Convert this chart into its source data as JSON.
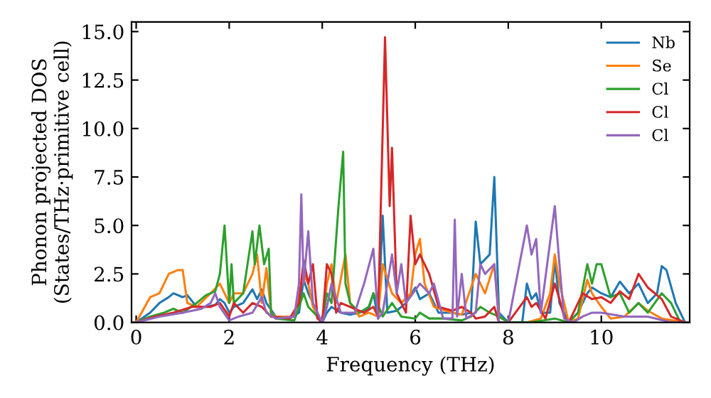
{
  "chart_data": {
    "type": "line",
    "xlabel": "Frequency (THz)",
    "ylabel": "Phonon projected DOS\n(States/THz·primitive cell)",
    "xlim": [
      -0.1,
      11.9
    ],
    "ylim": [
      0,
      15.5
    ],
    "xticks": [
      0,
      2,
      4,
      6,
      8,
      10
    ],
    "yticks": [
      {
        "value": 0,
        "label": "0.0"
      },
      {
        "value": 2.5,
        "label": "2.5"
      },
      {
        "value": 5,
        "label": "5.0"
      },
      {
        "value": 7.5,
        "label": "7.5"
      },
      {
        "value": 10,
        "label": "10.0"
      },
      {
        "value": 12.5,
        "label": "12.5"
      },
      {
        "value": 15,
        "label": "15.0"
      }
    ],
    "grid": false,
    "legend": "top right",
    "marker": "none",
    "line_style": "solid",
    "series": [
      {
        "name": "Nb",
        "color": "#1f77b4",
        "x": [
          0,
          0.3,
          0.5,
          0.7,
          0.8,
          1.0,
          1.1,
          1.3,
          1.5,
          1.7,
          1.8,
          1.9,
          2.0,
          2.1,
          2.3,
          2.5,
          2.6,
          2.7,
          2.8,
          3.0,
          3.3,
          3.5,
          3.6,
          3.7,
          3.8,
          3.9,
          4.0,
          4.1,
          4.2,
          4.4,
          4.6,
          4.8,
          5.0,
          5.1,
          5.2,
          5.3,
          5.4,
          5.6,
          5.8,
          6.0,
          6.1,
          6.3,
          6.5,
          6.8,
          7.0,
          7.2,
          7.3,
          7.4,
          7.6,
          7.7,
          7.8,
          8.0,
          8.3,
          8.4,
          8.5,
          8.6,
          8.7,
          8.9,
          9.0,
          9.1,
          9.3,
          9.5,
          9.7,
          9.8,
          10.0,
          10.2,
          10.4,
          10.6,
          10.8,
          11.0,
          11.2,
          11.3,
          11.4,
          11.6,
          11.8
        ],
        "values": [
          0,
          0.5,
          1.0,
          1.3,
          1.5,
          1.3,
          1.4,
          0.8,
          0.8,
          0.9,
          1.2,
          1.0,
          0.5,
          0.8,
          1.0,
          1.7,
          1.2,
          1.7,
          1.0,
          0.3,
          0.2,
          0.5,
          2.2,
          1.5,
          1.0,
          0.2,
          0.0,
          0.5,
          0.8,
          0.5,
          0.4,
          0.5,
          0.7,
          1.5,
          0.2,
          5.5,
          0.5,
          0.6,
          1.0,
          1.8,
          1.2,
          1.5,
          0.5,
          0.5,
          0.4,
          0.5,
          5.2,
          3.0,
          3.5,
          7.5,
          0.5,
          0.0,
          0.0,
          2.0,
          1.2,
          1.5,
          0.5,
          0.5,
          3.2,
          1.0,
          0.0,
          0.5,
          1.5,
          1.8,
          1.5,
          1.3,
          2.1,
          1.5,
          2.0,
          1.0,
          1.5,
          2.9,
          2.7,
          1.0,
          0.0
        ]
      },
      {
        "name": "Se",
        "color": "#ff7f0e",
        "x": [
          0,
          0.3,
          0.5,
          0.7,
          0.9,
          1.0,
          1.1,
          1.3,
          1.6,
          1.8,
          2.0,
          2.1,
          2.3,
          2.5,
          2.6,
          2.7,
          2.8,
          2.9,
          3.0,
          3.4,
          3.6,
          3.7,
          3.8,
          4.0,
          4.1,
          4.2,
          4.3,
          4.5,
          4.6,
          4.8,
          5.0,
          5.2,
          5.3,
          5.5,
          5.7,
          5.9,
          6.0,
          6.1,
          6.2,
          6.4,
          6.8,
          7.0,
          7.3,
          7.5,
          7.7,
          7.8,
          8.0,
          8.4,
          8.7,
          8.9,
          9.0,
          9.1,
          9.3,
          9.5,
          9.7,
          9.8,
          10.0,
          10.2,
          10.5,
          10.8,
          11.0,
          11.3,
          11.8
        ],
        "values": [
          0,
          1.3,
          1.5,
          2.5,
          2.7,
          2.7,
          1.0,
          0.8,
          1.5,
          2.0,
          1.0,
          1.5,
          1.5,
          2.5,
          3.5,
          1.0,
          2.8,
          0.5,
          0.3,
          0.3,
          2.5,
          2.0,
          0.8,
          0,
          2.0,
          3.0,
          1.0,
          3.5,
          1.0,
          0.3,
          0.5,
          0.3,
          3.0,
          1.5,
          1.0,
          1.5,
          3.5,
          4.3,
          2.0,
          0.8,
          0.5,
          0.4,
          2.5,
          1.5,
          3.0,
          0.3,
          0,
          0,
          0.2,
          1.5,
          3.5,
          2.0,
          0.0,
          0.2,
          2.2,
          1.5,
          0.8,
          0.2,
          0.3,
          1.0,
          0.6,
          0.2,
          0
        ]
      },
      {
        "name": "Cl",
        "color": "#2ca02c",
        "x": [
          0,
          0.3,
          0.6,
          0.8,
          1.0,
          1.3,
          1.5,
          1.7,
          1.8,
          1.9,
          2.0,
          2.05,
          2.1,
          2.3,
          2.5,
          2.55,
          2.65,
          2.75,
          2.85,
          2.9,
          3.0,
          3.4,
          3.6,
          3.7,
          3.9,
          4.0,
          4.1,
          4.2,
          4.35,
          4.45,
          4.5,
          4.6,
          4.8,
          5.0,
          5.1,
          5.3,
          5.5,
          5.7,
          6.0,
          6.1,
          6.3,
          6.6,
          7.0,
          7.2,
          7.4,
          7.6,
          7.8,
          8.0,
          8.5,
          9.0,
          9.3,
          9.5,
          9.7,
          9.8,
          9.9,
          10.0,
          10.2,
          10.4,
          10.6,
          10.8,
          11.0,
          11.3,
          11.5,
          11.7
        ],
        "values": [
          0,
          0.3,
          0.5,
          0.7,
          0.5,
          1.0,
          1.4,
          1.6,
          2.5,
          5.0,
          1.0,
          3.0,
          1.0,
          1.5,
          4.7,
          3.0,
          5.0,
          3.0,
          3.8,
          0.5,
          0.2,
          0.1,
          1.5,
          0.8,
          0.3,
          0,
          1.5,
          1.0,
          6.0,
          8.8,
          2.0,
          1.0,
          0.5,
          0.8,
          1.5,
          0.3,
          1.0,
          0.3,
          0.2,
          0.5,
          0.2,
          0.2,
          0.1,
          0.3,
          0.8,
          0.5,
          0.3,
          0,
          0,
          0.2,
          0,
          0.5,
          3.0,
          2.0,
          3.0,
          3.0,
          1.3,
          1.5,
          0.5,
          1.0,
          0.5,
          1.5,
          1.0,
          0
        ]
      },
      {
        "name": "Cl",
        "color": "#d62728",
        "x": [
          0,
          0.4,
          0.8,
          1.2,
          1.6,
          1.8,
          2.0,
          2.1,
          2.3,
          2.5,
          2.7,
          2.9,
          3.3,
          3.5,
          3.6,
          3.7,
          3.8,
          3.9,
          4.0,
          4.1,
          4.2,
          4.3,
          4.4,
          4.6,
          4.9,
          5.1,
          5.2,
          5.35,
          5.45,
          5.5,
          5.6,
          5.8,
          5.9,
          6.0,
          6.1,
          6.3,
          6.5,
          6.8,
          7.0,
          7.2,
          7.3,
          7.5,
          7.7,
          7.8,
          8.0,
          8.4,
          8.5,
          8.6,
          8.8,
          9.0,
          9.1,
          9.2,
          9.3,
          9.6,
          9.8,
          10.0,
          10.2,
          10.4,
          10.6,
          10.8,
          11.0,
          11.3,
          11.5,
          11.8
        ],
        "values": [
          0,
          0.3,
          0.5,
          0.8,
          0.8,
          1.0,
          0.3,
          1.0,
          0.5,
          1.0,
          0.8,
          0.3,
          0.2,
          1.0,
          3.2,
          2.0,
          3.0,
          0.2,
          0,
          3.0,
          2.5,
          0.5,
          1.0,
          0.8,
          0.5,
          0.8,
          0.3,
          14.7,
          6.0,
          9.0,
          1.5,
          0.5,
          5.5,
          3.0,
          3.5,
          2.5,
          0.8,
          0.6,
          0.8,
          0.5,
          0.2,
          0.3,
          0.8,
          0,
          0,
          1.3,
          0.8,
          1.0,
          0.2,
          2.0,
          1.2,
          0.3,
          0,
          1.5,
          1.2,
          1.3,
          1.0,
          1.6,
          1.2,
          2.5,
          1.8,
          1.2,
          0.3,
          0
        ]
      },
      {
        "name": "Cl",
        "color": "#9467bd",
        "x": [
          0,
          0.5,
          1.0,
          1.4,
          1.6,
          1.7,
          1.8,
          2.0,
          2.2,
          2.5,
          2.7,
          2.8,
          3.0,
          3.4,
          3.5,
          3.55,
          3.6,
          3.7,
          3.8,
          4.0,
          4.1,
          4.2,
          4.4,
          4.7,
          4.9,
          5.1,
          5.2,
          5.3,
          5.5,
          5.6,
          5.7,
          5.8,
          6.1,
          6.3,
          6.4,
          6.6,
          6.8,
          6.85,
          6.9,
          7.0,
          7.1,
          7.3,
          7.4,
          7.5,
          7.7,
          7.8,
          8.0,
          8.4,
          8.5,
          8.6,
          8.7,
          9.0,
          9.1,
          9.2,
          9.4,
          9.6,
          9.8,
          10.0,
          10.5,
          11.0,
          11.5,
          11.8
        ],
        "values": [
          0,
          0.3,
          0.5,
          0.7,
          1.0,
          1.5,
          0.8,
          0.1,
          0.3,
          0.5,
          1.3,
          0.5,
          0.2,
          0.3,
          2.0,
          6.6,
          2.0,
          4.7,
          1.0,
          0,
          0.8,
          2.0,
          0.5,
          0.5,
          2.0,
          3.8,
          0.2,
          0.5,
          3.5,
          1.5,
          3.0,
          1.0,
          2.0,
          1.5,
          2.0,
          0.2,
          0.2,
          5.3,
          0.3,
          2.5,
          0.2,
          0.5,
          3.0,
          2.5,
          3.0,
          0,
          0,
          5.0,
          3.5,
          4.3,
          0.5,
          6.0,
          3.0,
          0.2,
          0,
          0.3,
          0.5,
          0.5,
          0.3,
          0.3,
          0.0,
          0
        ]
      }
    ]
  }
}
